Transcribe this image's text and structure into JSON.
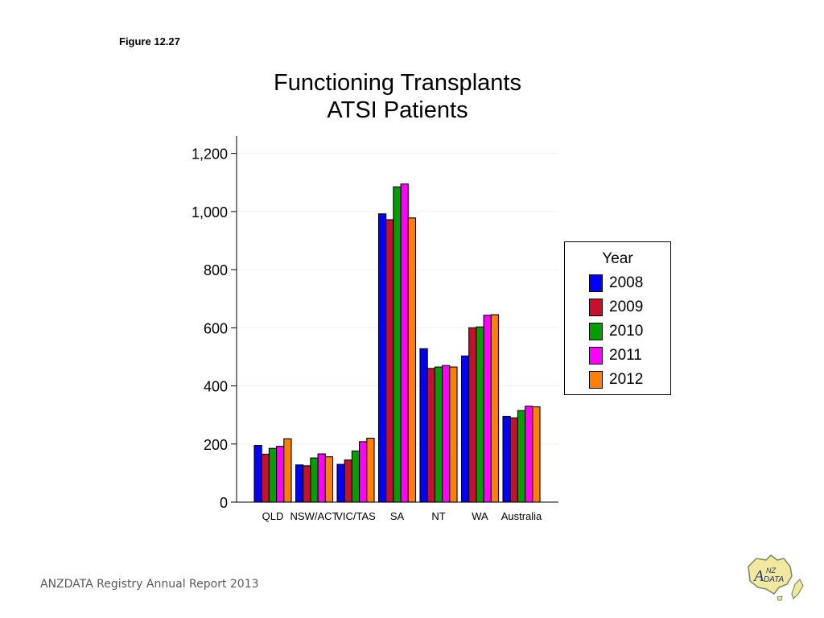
{
  "figure_label": "Figure 12.27",
  "footer": "ANZDATA Registry Annual Report 2013",
  "logo": {
    "lettering": "ANZDATA",
    "icon": "anzdata-map-logo"
  },
  "chart_data": {
    "type": "bar",
    "title": [
      "Functioning Transplants",
      "ATSI Patients"
    ],
    "xlabel": "",
    "ylabel": "",
    "categories": [
      "QLD",
      "NSW/ACT",
      "VIC/TAS",
      "SA",
      "NT",
      "WA",
      "Australia"
    ],
    "series": [
      {
        "name": "2008",
        "color": "#0000ff",
        "values": [
          195,
          128,
          130,
          992,
          528,
          503,
          295
        ]
      },
      {
        "name": "2009",
        "color": "#c8102e",
        "values": [
          165,
          125,
          145,
          972,
          460,
          600,
          290
        ]
      },
      {
        "name": "2010",
        "color": "#00a000",
        "values": [
          185,
          152,
          176,
          1085,
          465,
          603,
          315
        ]
      },
      {
        "name": "2011",
        "color": "#ff00ff",
        "values": [
          192,
          166,
          208,
          1095,
          470,
          643,
          330
        ]
      },
      {
        "name": "2012",
        "color": "#ff8000",
        "values": [
          218,
          156,
          220,
          978,
          465,
          645,
          328
        ]
      }
    ],
    "ylim": [
      0,
      1260
    ],
    "yticks": [
      0,
      200,
      400,
      600,
      800,
      1000,
      1200
    ],
    "ytick_labels": [
      "0",
      "200",
      "400",
      "600",
      "800",
      "1,000",
      "1,200"
    ],
    "grid": true,
    "legend": {
      "title": "Year",
      "placement": "right"
    }
  }
}
